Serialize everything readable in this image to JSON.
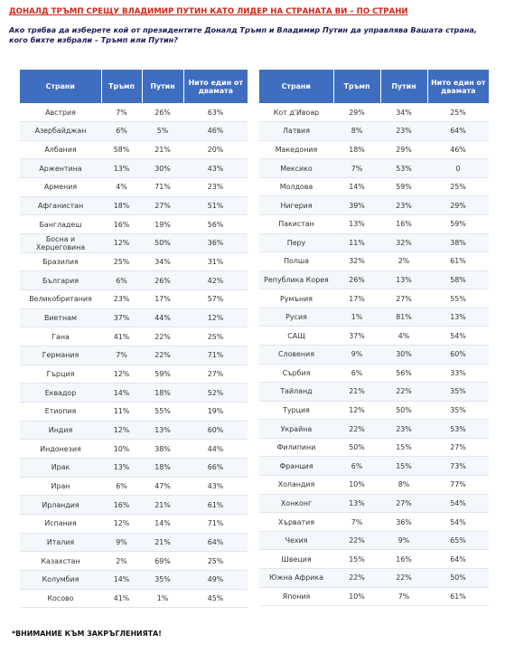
{
  "title": "ДОНАЛД ТРЪМП СРЕЩУ ВЛАДИМИР ПУТИН КАТО ЛИДЕР НА СТРАНАТА ВИ – ПО СТРАНИ",
  "question": "Ако трябва да изберете кой от президентите Доналд Тръмп и Владимир Путин да управлява Вашата страна, кого бихте избрали – Тръмп или Путин?",
  "headers": [
    "Страни",
    "Тръмп",
    "Путин",
    "Нито един от двамата"
  ],
  "left_rows": [
    [
      "Австрия",
      "7%",
      "26%",
      "63%"
    ],
    [
      "Азербайджан",
      "6%",
      "5%",
      "46%"
    ],
    [
      "Албания",
      "58%",
      "21%",
      "20%"
    ],
    [
      "Аржентина",
      "13%",
      "30%",
      "43%"
    ],
    [
      "Армения",
      "4%",
      "71%",
      "23%"
    ],
    [
      "Афганистан",
      "18%",
      "27%",
      "51%"
    ],
    [
      "Бангладеш",
      "16%",
      "19%",
      "56%"
    ],
    [
      "Босна и Херцеговина",
      "12%",
      "50%",
      "36%"
    ],
    [
      "Бразилия",
      "25%",
      "34%",
      "31%"
    ],
    [
      "България",
      "6%",
      "26%",
      "42%"
    ],
    [
      "Великобритания",
      "23%",
      "17%",
      "57%"
    ],
    [
      "Виетнам",
      "37%",
      "44%",
      "12%"
    ],
    [
      "Гана",
      "41%",
      "22%",
      "25%"
    ],
    [
      "Германия",
      "7%",
      "22%",
      "71%"
    ],
    [
      "Гърция",
      "12%",
      "59%",
      "27%"
    ],
    [
      "Еквадор",
      "14%",
      "18%",
      "52%"
    ],
    [
      "Етиопия",
      "11%",
      "55%",
      "19%"
    ],
    [
      "Индия",
      "12%",
      "13%",
      "60%"
    ],
    [
      "Индонезия",
      "10%",
      "38%",
      "44%"
    ],
    [
      "Ирак",
      "13%",
      "18%",
      "66%"
    ],
    [
      "Иран",
      "6%",
      "47%",
      "43%"
    ],
    [
      "Ирландия",
      "16%",
      "21%",
      "61%"
    ],
    [
      "Испания",
      "12%",
      "14%",
      "71%"
    ],
    [
      "Италия",
      "9%",
      "21%",
      "64%"
    ],
    [
      "Казахстан",
      "2%",
      "69%",
      "25%"
    ],
    [
      "Колумбия",
      "14%",
      "35%",
      "49%"
    ],
    [
      "Косово",
      "41%",
      "1%",
      "45%"
    ]
  ],
  "right_rows": [
    [
      "Кот д'Ивоар",
      "29%",
      "34%",
      "25%"
    ],
    [
      "Латвия",
      "8%",
      "23%",
      "64%"
    ],
    [
      "Македония",
      "18%",
      "29%",
      "46%"
    ],
    [
      "Мексико",
      "7%",
      "53%",
      "0"
    ],
    [
      "Молдова",
      "14%",
      "59%",
      "25%"
    ],
    [
      "Нигерия",
      "39%",
      "23%",
      "29%"
    ],
    [
      "Пакистан",
      "13%",
      "16%",
      "59%"
    ],
    [
      "Перу",
      "11%",
      "32%",
      "38%"
    ],
    [
      "Полша",
      "32%",
      "2%",
      "61%"
    ],
    [
      "Република Корея",
      "26%",
      "13%",
      "58%"
    ],
    [
      "Румъния",
      "17%",
      "27%",
      "55%"
    ],
    [
      "Русия",
      "1%",
      "81%",
      "13%"
    ],
    [
      "САЩ",
      "37%",
      "4%",
      "54%"
    ],
    [
      "Словения",
      "9%",
      "30%",
      "60%"
    ],
    [
      "Сърбия",
      "6%",
      "56%",
      "33%"
    ],
    [
      "Тайланд",
      "21%",
      "22%",
      "35%"
    ],
    [
      "Турция",
      "12%",
      "50%",
      "35%"
    ],
    [
      "Украйна",
      "22%",
      "23%",
      "53%"
    ],
    [
      "Филипини",
      "50%",
      "15%",
      "27%"
    ],
    [
      "Франция",
      "6%",
      "15%",
      "73%"
    ],
    [
      "Холандия",
      "10%",
      "8%",
      "77%"
    ],
    [
      "Хонконг",
      "13%",
      "27%",
      "54%"
    ],
    [
      "Хърватия",
      "7%",
      "36%",
      "54%"
    ],
    [
      "Чехия",
      "22%",
      "9%",
      "65%"
    ],
    [
      "Швеция",
      "15%",
      "16%",
      "64%"
    ],
    [
      "Южна Африка",
      "22%",
      "22%",
      "50%"
    ],
    [
      "Япония",
      "10%",
      "7%",
      "61%"
    ]
  ],
  "footer": "*ВНИМАНИЕ КЪМ ЗАКРЪГЛЕНИЯТА!"
}
